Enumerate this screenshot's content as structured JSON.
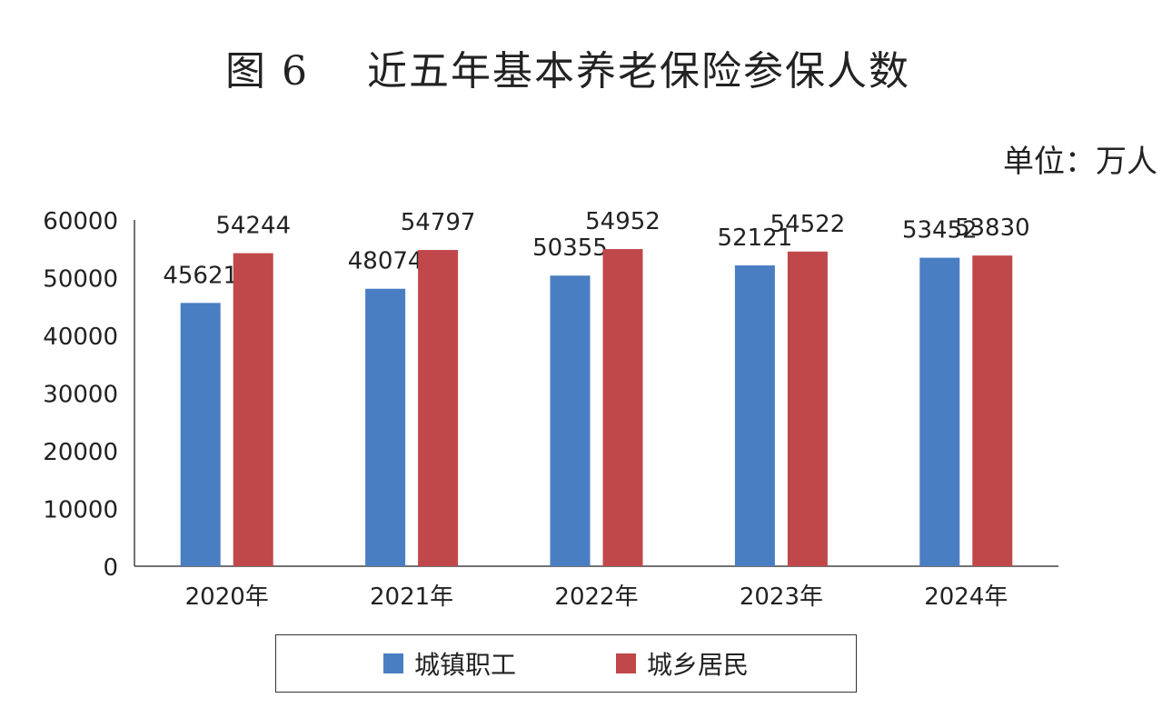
{
  "title": "图 6    近五年基本养老保险参保人数",
  "unit": "单位：万人",
  "legend": {
    "items": [
      {
        "label": "城镇职工",
        "color": "#4a7ec3"
      },
      {
        "label": "城乡居民",
        "color": "#c0484a"
      }
    ]
  },
  "chart_data": {
    "type": "bar",
    "title": "图 6    近五年基本养老保险参保人数",
    "ylabel": "",
    "xlabel": "",
    "ylim": [
      0,
      60000
    ],
    "yticks": [
      "0",
      "10000",
      "20000",
      "30000",
      "40000",
      "50000",
      "60000"
    ],
    "categories": [
      "2020年",
      "2021年",
      "2022年",
      "2023年",
      "2024年"
    ],
    "series": [
      {
        "name": "城镇职工",
        "color": "#4a7ec3",
        "values": [
          45621,
          48074,
          50355,
          52121,
          53452
        ]
      },
      {
        "name": "城乡居民",
        "color": "#c0484a",
        "values": [
          54244,
          54797,
          54952,
          54522,
          53830
        ]
      }
    ],
    "grid": false,
    "legend_position": "bottom"
  }
}
